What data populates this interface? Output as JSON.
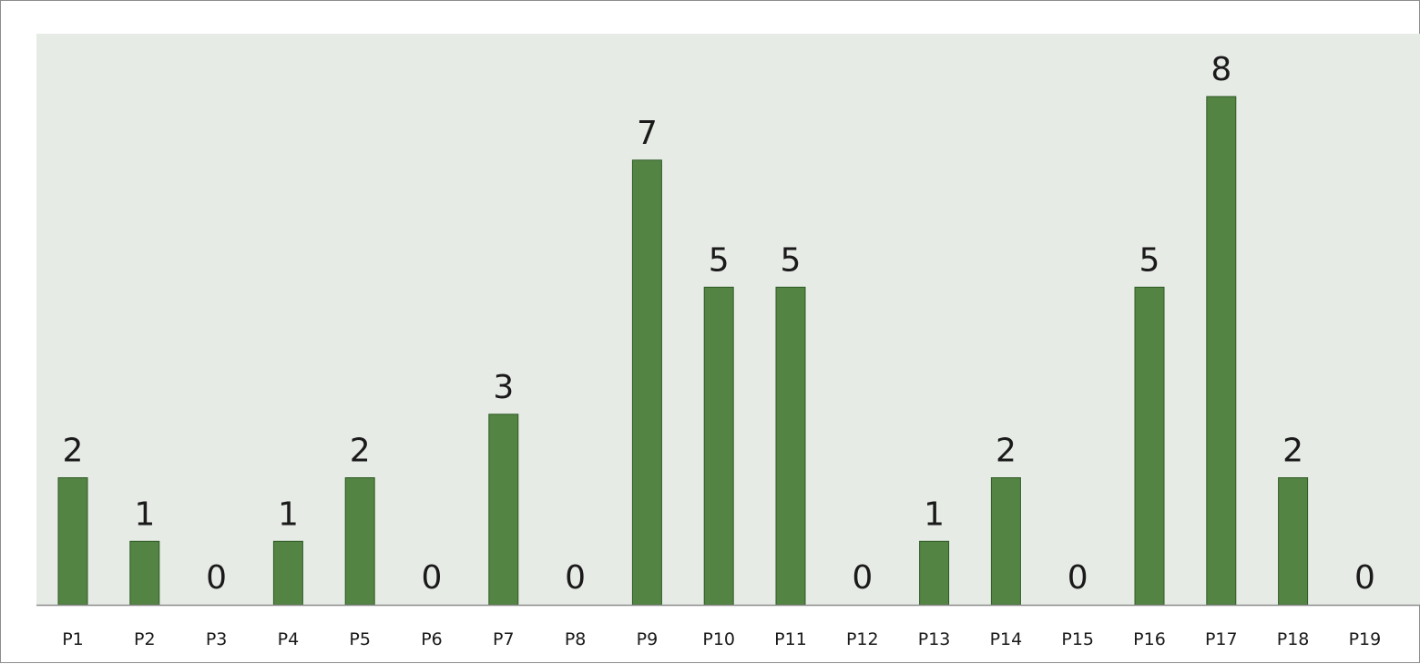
{
  "chart_data": {
    "type": "bar",
    "title": "",
    "xlabel": "",
    "ylabel": "",
    "categories": [
      "P1",
      "P2",
      "P3",
      "P4",
      "P5",
      "P6",
      "P7",
      "P8",
      "P9",
      "P10",
      "P11",
      "P12",
      "P13",
      "P14",
      "P15",
      "P16",
      "P17",
      "P18",
      "P19"
    ],
    "values": [
      2,
      1,
      0,
      1,
      2,
      0,
      3,
      0,
      7,
      5,
      5,
      0,
      1,
      2,
      0,
      5,
      8,
      2,
      0
    ],
    "ylim": [
      0,
      9
    ],
    "grid": false,
    "legend": "none",
    "data_labels": true,
    "colors": {
      "bar_fill": "#538443",
      "bar_stroke": "#2f5a26",
      "plot_background": "#e7ebe6",
      "axis_line": "#8c8c8c"
    }
  }
}
